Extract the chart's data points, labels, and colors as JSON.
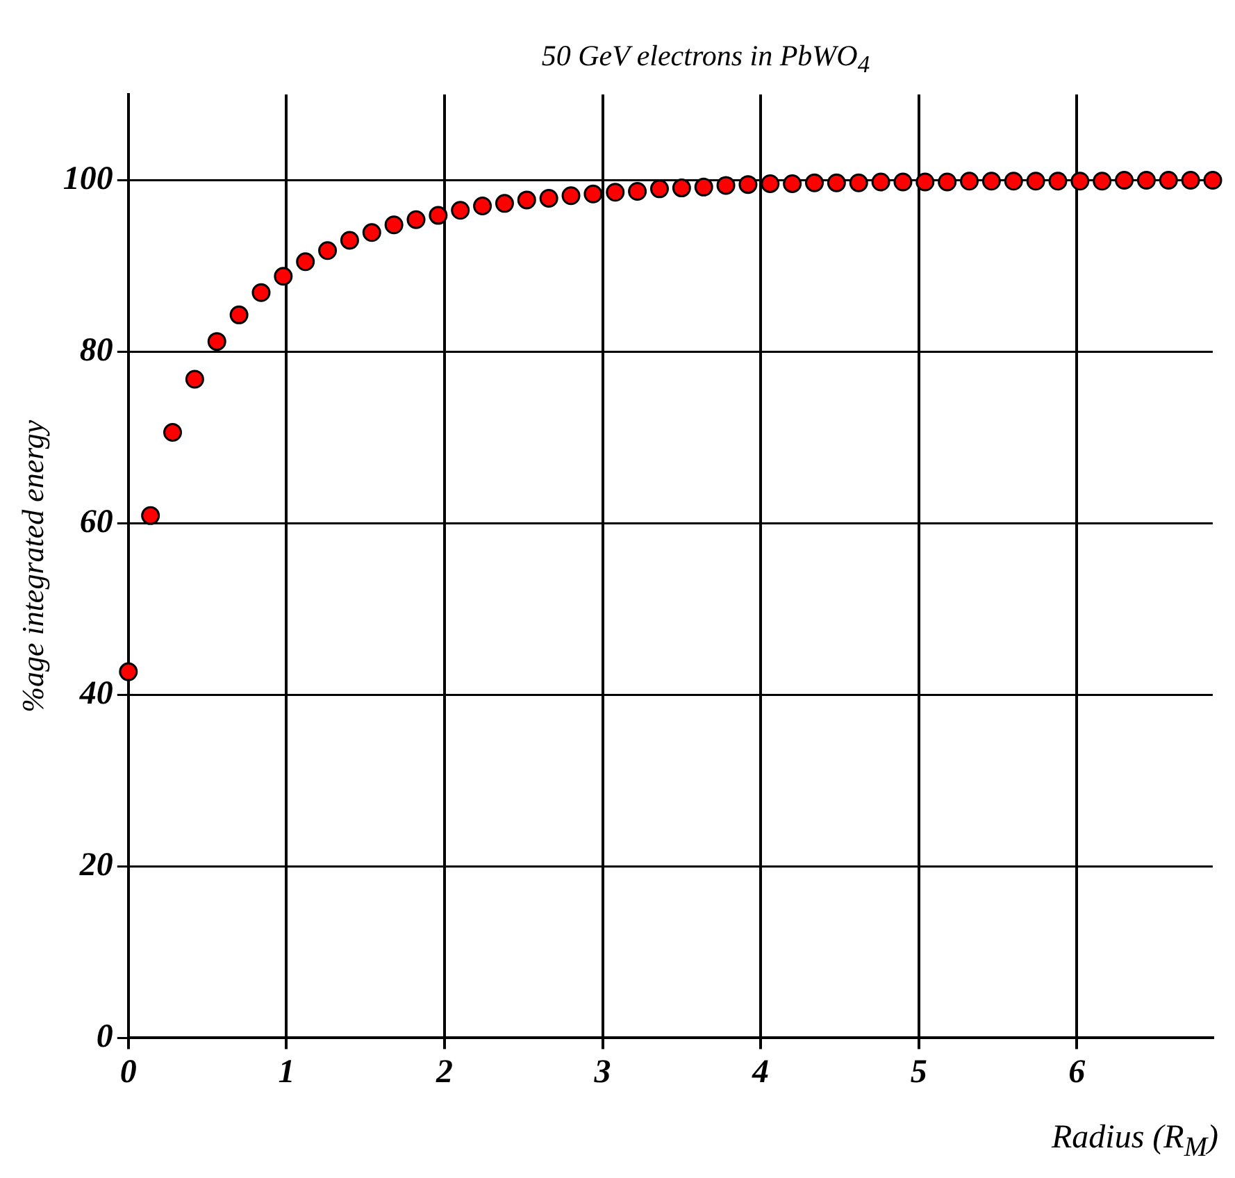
{
  "chart_data": {
    "type": "scatter",
    "title": "50 GeV electrons in PbWO$_{4}$",
    "xlabel": "Radius (R$_{M}$)",
    "ylabel": "%age integrated energy",
    "x": [
      0,
      0.14,
      0.28,
      0.42,
      0.56,
      0.7,
      0.84,
      0.98,
      1.12,
      1.26,
      1.4,
      1.54,
      1.68,
      1.82,
      1.96,
      2.1,
      2.24,
      2.38,
      2.52,
      2.66,
      2.8,
      2.94,
      3.08,
      3.22,
      3.36,
      3.5,
      3.64,
      3.78,
      3.92,
      4.06,
      4.2,
      4.34,
      4.48,
      4.62,
      4.76,
      4.9,
      5.04,
      5.18,
      5.32,
      5.46,
      5.6,
      5.74,
      5.88,
      6.02,
      6.16,
      6.3,
      6.44,
      6.58,
      6.72,
      6.86
    ],
    "series": [
      {
        "color": "#ff0000",
        "values": [
          42.7,
          60.9,
          70.6,
          76.8,
          81.2,
          84.3,
          86.9,
          88.8,
          90.5,
          91.8,
          93.0,
          93.9,
          94.8,
          95.4,
          95.9,
          96.5,
          97.0,
          97.3,
          97.7,
          97.9,
          98.2,
          98.4,
          98.6,
          98.7,
          99.0,
          99.1,
          99.2,
          99.4,
          99.5,
          99.6,
          99.6,
          99.7,
          99.7,
          99.7,
          99.8,
          99.8,
          99.8,
          99.8,
          99.9,
          99.9,
          99.9,
          99.9,
          99.9,
          99.9,
          99.9,
          100,
          100,
          100,
          100,
          100
        ]
      }
    ],
    "xlim": [
      0,
      6.86
    ],
    "xticks": [
      0,
      1,
      2,
      3,
      4,
      5,
      6
    ],
    "ylim": [
      0,
      110
    ],
    "yticks": [
      0,
      20,
      40,
      60,
      80,
      100
    ],
    "grid": true,
    "legend": false,
    "marker": "circle"
  }
}
